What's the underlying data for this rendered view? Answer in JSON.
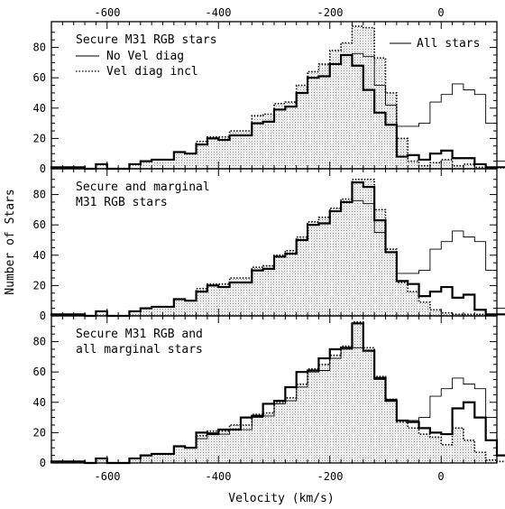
{
  "chart_data": {
    "type": "step-histogram",
    "xlabel": "Velocity (km/s)",
    "ylabel": "Number of Stars",
    "xlim": [
      -700,
      100
    ],
    "ylim": [
      0,
      97
    ],
    "x_ticks": [
      -600,
      -400,
      -200,
      0
    ],
    "x_tick_labels": [
      "-600",
      "-400",
      "-200",
      "0"
    ],
    "top_tick_labels": [
      "-600",
      "-400",
      "-200",
      "0"
    ],
    "y_ticks": [
      0,
      20,
      40,
      60,
      80
    ],
    "y_tick_labels": [
      "0",
      "20",
      "40",
      "60",
      "80"
    ],
    "bin_width": 20,
    "bin_edges_start": -700,
    "all_stars": [
      1,
      1,
      1,
      0,
      3,
      0,
      0,
      3,
      5,
      6,
      6,
      11,
      10,
      16,
      20,
      19,
      22,
      22,
      30,
      31,
      39,
      41,
      50,
      60,
      61,
      69,
      75,
      76,
      74,
      55,
      42,
      28,
      28,
      30,
      44,
      49,
      56,
      52,
      49,
      30,
      5,
      2,
      1,
      0
    ],
    "panels": [
      {
        "label_lines": [
          "Secure M31 RGB stars"
        ],
        "series": [
          {
            "name": "No Vel diag",
            "style": "solid-thick",
            "values": [
              1,
              1,
              1,
              0,
              3,
              0,
              0,
              3,
              5,
              6,
              6,
              11,
              10,
              16,
              20,
              19,
              22,
              22,
              30,
              31,
              39,
              41,
              50,
              60,
              61,
              69,
              75,
              68,
              52,
              37,
              29,
              8,
              9,
              6,
              10,
              12,
              7,
              7,
              3,
              1,
              1,
              0,
              0,
              0
            ]
          },
          {
            "name": "Vel diag incl",
            "style": "dotted-filled",
            "values": [
              1,
              1,
              1,
              0,
              3,
              0,
              0,
              3,
              5,
              6,
              6,
              11,
              10,
              18,
              21,
              21,
              25,
              25,
              35,
              36,
              43,
              44,
              55,
              64,
              69,
              78,
              83,
              94,
              93,
              73,
              50,
              20,
              5,
              2,
              4,
              6,
              2,
              3,
              1,
              1,
              1,
              0,
              0,
              0
            ]
          }
        ]
      },
      {
        "label_lines": [
          "Secure and marginal",
          "M31 RGB stars"
        ],
        "series": [
          {
            "name": "",
            "style": "solid-thick",
            "values": [
              1,
              1,
              1,
              0,
              3,
              0,
              0,
              3,
              5,
              6,
              6,
              11,
              10,
              16,
              20,
              19,
              22,
              22,
              30,
              31,
              39,
              41,
              50,
              60,
              61,
              69,
              75,
              88,
              85,
              63,
              42,
              23,
              21,
              13,
              16,
              19,
              12,
              14,
              4,
              1,
              1,
              0,
              0,
              0
            ]
          },
          {
            "name": "",
            "style": "dotted-filled",
            "values": [
              1,
              1,
              1,
              0,
              3,
              0,
              0,
              3,
              5,
              6,
              6,
              11,
              10,
              18,
              21,
              21,
              25,
              25,
              32,
              33,
              40,
              43,
              52,
              62,
              65,
              71,
              77,
              90,
              90,
              70,
              44,
              22,
              16,
              9,
              4,
              2,
              1,
              1,
              1,
              1,
              1,
              0,
              0,
              0
            ]
          }
        ]
      },
      {
        "label_lines": [
          "Secure M31 RGB and",
          "all marginal stars"
        ],
        "series": [
          {
            "name": "",
            "style": "solid-thick",
            "values": [
              1,
              1,
              1,
              0,
              3,
              0,
              0,
              3,
              5,
              6,
              6,
              11,
              10,
              20,
              19,
              22,
              22,
              30,
              31,
              39,
              41,
              50,
              60,
              61,
              69,
              75,
              76,
              92,
              74,
              56,
              41,
              28,
              27,
              23,
              20,
              19,
              36,
              40,
              30,
              15,
              5,
              2,
              1,
              0
            ]
          },
          {
            "name": "",
            "style": "dotted-filled",
            "values": [
              1,
              1,
              1,
              0,
              3,
              0,
              0,
              3,
              5,
              6,
              6,
              11,
              10,
              18,
              21,
              21,
              25,
              25,
              32,
              33,
              40,
              43,
              52,
              62,
              65,
              71,
              77,
              93,
              76,
              57,
              42,
              27,
              23,
              19,
              17,
              12,
              23,
              15,
              7,
              2,
              1,
              0,
              0,
              0
            ]
          }
        ]
      }
    ],
    "legend": {
      "position": "top-left and top-right of panel 1",
      "entries": [
        "No Vel diag",
        "Vel diag incl",
        "All stars"
      ]
    }
  }
}
